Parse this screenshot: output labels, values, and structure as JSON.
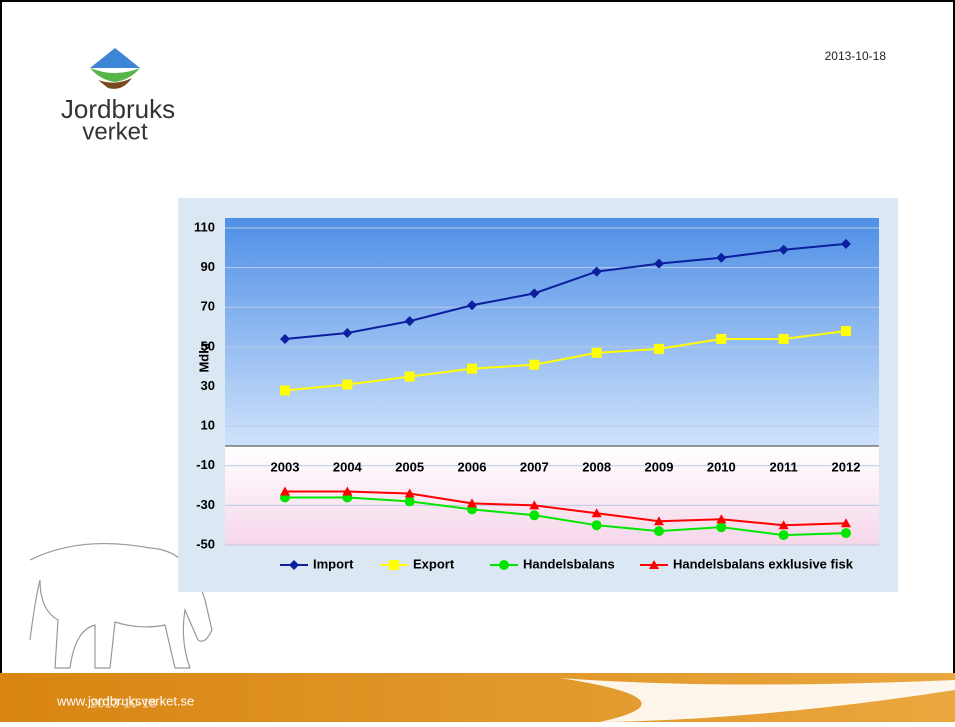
{
  "header": {
    "logo_line1": "Jordbruks",
    "logo_line2": "verket",
    "date": "2013-10-18"
  },
  "footer": {
    "url": "www.jordbruksverket.se",
    "date": "2013-10-18"
  },
  "chart_data": {
    "type": "line",
    "y_label": "Mdkr",
    "categories": [
      "2003",
      "2004",
      "2005",
      "2006",
      "2007",
      "2008",
      "2009",
      "2010",
      "2011",
      "2012"
    ],
    "series": [
      {
        "name": "Import",
        "color": "#0c1f9e",
        "marker": "diamond",
        "values": [
          54,
          57,
          63,
          71,
          77,
          88,
          92,
          95,
          99,
          102
        ]
      },
      {
        "name": "Export",
        "color": "#ffff00",
        "marker": "square",
        "values": [
          28,
          31,
          35,
          39,
          41,
          47,
          49,
          54,
          54,
          58
        ]
      },
      {
        "name": "Handelsbalans",
        "color": "#00e600",
        "marker": "circle",
        "values": [
          -26,
          -26,
          -28,
          -32,
          -35,
          -40,
          -43,
          -41,
          -45,
          -44
        ]
      },
      {
        "name": "Handelsbalans exklusive fisk",
        "color": "#ff0000",
        "marker": "triangle",
        "values": [
          -23,
          -23,
          -24,
          -29,
          -30,
          -34,
          -38,
          -37,
          -40,
          -39
        ]
      }
    ],
    "ylim": [
      -50,
      110
    ],
    "yticks": [
      -50,
      -30,
      -10,
      10,
      30,
      50,
      70,
      90,
      110
    ],
    "grid": true,
    "legend": "bottom"
  }
}
